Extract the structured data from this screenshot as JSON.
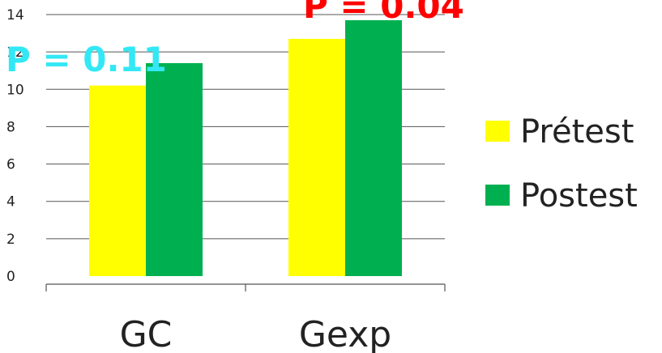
{
  "chart_data": {
    "type": "bar",
    "categories": [
      "GC",
      "Gexp"
    ],
    "series": [
      {
        "name": "Prétest",
        "values": [
          10.2,
          12.7
        ],
        "color": "#ffff00"
      },
      {
        "name": "Postest",
        "values": [
          11.4,
          13.7
        ],
        "color": "#00b050"
      }
    ],
    "ylim": [
      0,
      14
    ],
    "yticks": [
      0,
      2,
      4,
      6,
      8,
      10,
      12,
      14
    ],
    "ytick_labels": [
      "0",
      "2",
      "4",
      "6",
      "8",
      "10",
      "12",
      "14"
    ],
    "grid": true,
    "legend_position": "right",
    "annotations": [
      {
        "text": "P = 0.11",
        "category": "GC",
        "color": "#33e8f5"
      },
      {
        "text": "P = 0.04",
        "category": "Gexp",
        "color": "#ff0000"
      }
    ]
  }
}
